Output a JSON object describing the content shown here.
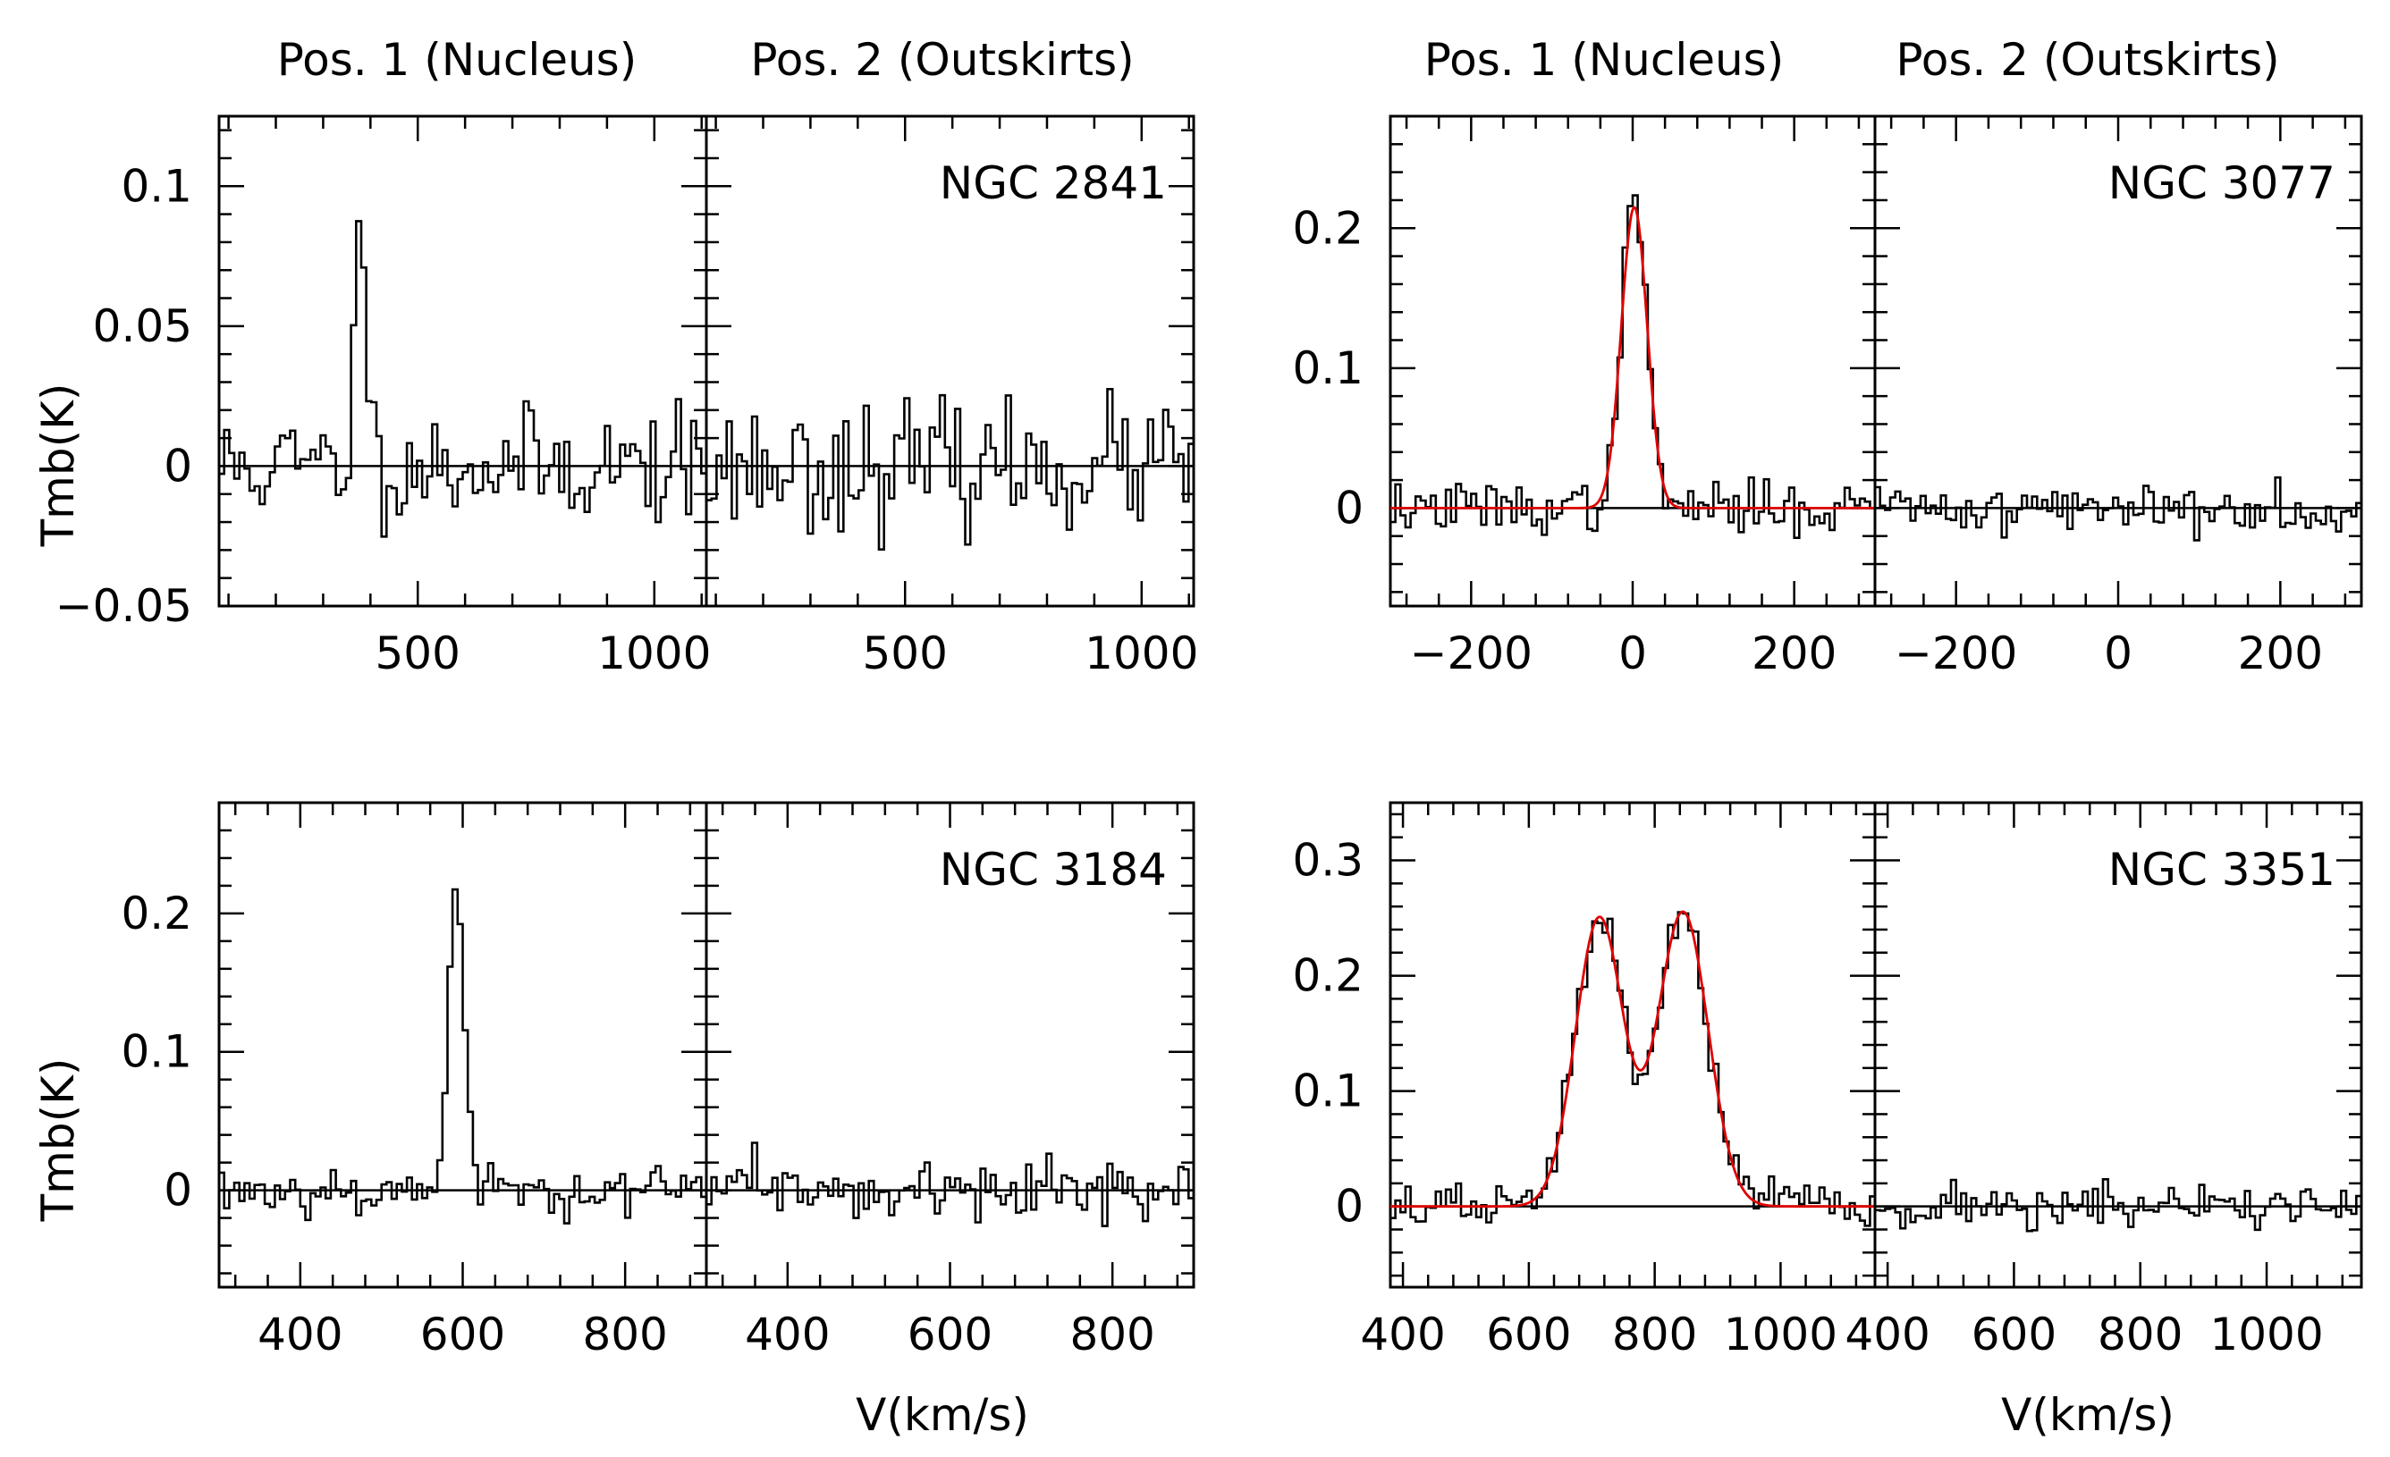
{
  "chart_data": [
    {
      "type": "line",
      "galaxy": "NGC 2841",
      "titles": [
        "Pos. 1 (Nucleus)",
        "Pos. 2 (Outskirts)"
      ],
      "ylabel": "Tmb(K)",
      "xlabel": "",
      "xlim": [
        80,
        1110
      ],
      "ylim": [
        -0.05,
        0.125
      ],
      "xticks": [
        500,
        1000
      ],
      "yticks": [
        -0.05,
        0,
        0.05,
        0.1
      ],
      "ytick_labels": [
        "−0.05",
        "0",
        "0.05",
        "0.1"
      ],
      "xtick_labels": [
        "500",
        "1000"
      ],
      "series": [
        {
          "name": "Pos. 1 (Nucleus)",
          "line": {
            "center": 380,
            "width": 12,
            "amplitude": 0.09
          },
          "noise_rms": 0.01,
          "seed": 11
        },
        {
          "name": "Pos. 2 (Outskirts)",
          "noise_rms": 0.011,
          "seed": 23
        }
      ]
    },
    {
      "type": "line",
      "galaxy": "NGC 3077",
      "titles": [
        "Pos. 1 (Nucleus)",
        "Pos. 2 (Outskirts)"
      ],
      "ylabel": "",
      "xlabel": "",
      "xlim": [
        -300,
        300
      ],
      "ylim": [
        -0.07,
        0.28
      ],
      "xticks": [
        -200,
        0,
        200
      ],
      "yticks": [
        0,
        0.1,
        0.2
      ],
      "ytick_labels": [
        "0",
        "0.1",
        "0.2"
      ],
      "xtick_labels": [
        "−200",
        "0",
        "200"
      ],
      "series": [
        {
          "name": "Pos. 1 (Nucleus)",
          "line": {
            "center": 2,
            "width": 16,
            "amplitude": 0.215
          },
          "noise_rms": 0.009,
          "seed": 37,
          "fit": true
        },
        {
          "name": "Pos. 2 (Outskirts)",
          "noise_rms": 0.009,
          "seed": 41
        }
      ]
    },
    {
      "type": "line",
      "galaxy": "NGC 3184",
      "titles": [],
      "ylabel": "Tmb(K)",
      "xlabel": "V(km/s)",
      "xlim": [
        300,
        900
      ],
      "ylim": [
        -0.07,
        0.28
      ],
      "xticks": [
        400,
        600,
        800
      ],
      "yticks": [
        0,
        0.1,
        0.2
      ],
      "ytick_labels": [
        "0",
        "0.1",
        "0.2"
      ],
      "xtick_labels": [
        "400",
        "600",
        "800"
      ],
      "series": [
        {
          "name": "Pos. 1 (Nucleus)",
          "line": {
            "center": 592,
            "width": 10,
            "amplitude": 0.215
          },
          "noise_rms": 0.009,
          "seed": 53
        },
        {
          "name": "Pos. 2 (Outskirts)",
          "noise_rms": 0.009,
          "seed": 59
        }
      ]
    },
    {
      "type": "line",
      "galaxy": "NGC 3351",
      "titles": [],
      "ylabel": "",
      "xlabel": "V(km/s)",
      "xlim": [
        380,
        1150
      ],
      "ylim": [
        -0.07,
        0.35
      ],
      "xticks": [
        400,
        600,
        800,
        1000
      ],
      "yticks": [
        0,
        0.1,
        0.2,
        0.3
      ],
      "ytick_labels": [
        "0",
        "0.1",
        "0.2",
        "0.3"
      ],
      "xtick_labels": [
        "400",
        "600",
        "800",
        "1000"
      ],
      "series": [
        {
          "name": "Pos. 1 (Nucleus)",
          "lines": [
            {
              "center": 712,
              "width": 38,
              "amplitude": 0.25
            },
            {
              "center": 845,
              "width": 40,
              "amplitude": 0.255
            }
          ],
          "noise_rms": 0.01,
          "seed": 67,
          "fit": true
        },
        {
          "name": "Pos. 2 (Outskirts)",
          "noise_rms": 0.01,
          "seed": 71
        }
      ]
    }
  ]
}
